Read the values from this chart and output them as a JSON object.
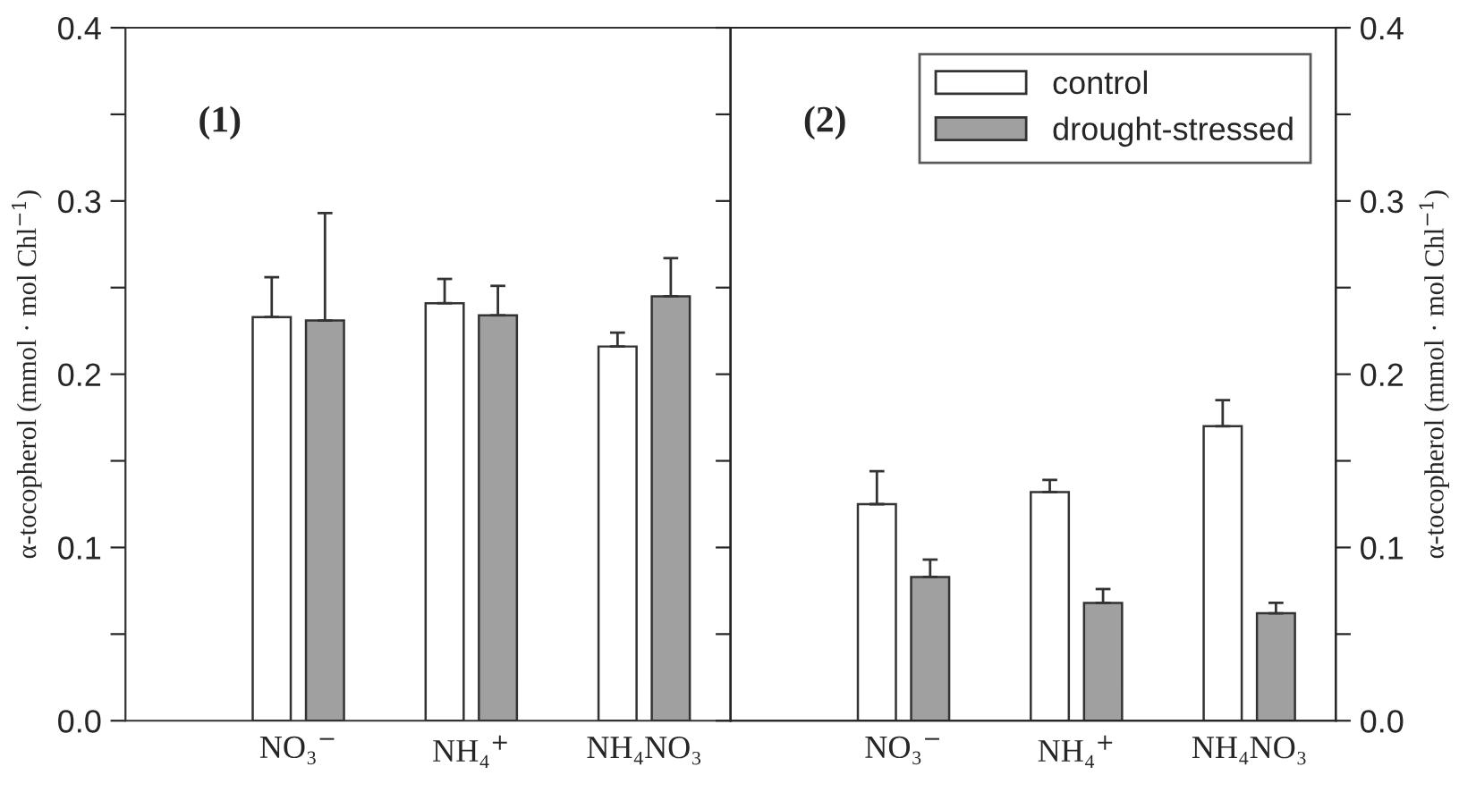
{
  "chart_data": [
    {
      "type": "bar",
      "annotations": [
        "(1)"
      ],
      "ylabel": "α-tocopherol (mmol · mol Chl$^{−1}$)",
      "categories": [
        "NO₃$^{−}$",
        "NH₄$^{+}$",
        "NH₄NO₃"
      ],
      "ylim": [
        0,
        0.4
      ],
      "yticks": [
        {
          "value": 0,
          "label": "0.0"
        },
        {
          "value": 0.05,
          "label": null
        },
        0.1,
        {
          "value": 0.15,
          "label": null
        },
        0.2,
        {
          "value": 0.25,
          "label": null
        },
        0.3,
        {
          "value": 0.35,
          "label": null
        },
        0.4
      ],
      "series": [
        {
          "color": "#ffffff",
          "values": [
            0.233,
            0.241,
            0.216
          ],
          "errors": [
            [
              0.233,
              0.256
            ],
            [
              0.241,
              0.255
            ],
            [
              0.216,
              0.224
            ]
          ]
        },
        {
          "color": "#a0a0a0",
          "values": [
            0.231,
            0.234,
            0.245
          ],
          "errors": [
            [
              0.231,
              0.293
            ],
            [
              0.234,
              0.251
            ],
            [
              0.245,
              0.267
            ]
          ]
        }
      ]
    },
    {
      "type": "bar",
      "annotations": [
        "(2)"
      ],
      "y2label": "α-tocopherol (mmol · mol Chl$^{−1}$)",
      "legend": "top right",
      "categories": [
        "NO₃$^{−}$",
        "NH₄$^{+}$",
        "NH₄NO₃"
      ],
      "y2lim": [
        0,
        0.4
      ],
      "y2ticks": [
        {
          "value": 0,
          "label": "0.0"
        },
        {
          "value": 0.05,
          "label": null
        },
        0.1,
        {
          "value": 0.15,
          "label": null
        },
        0.2,
        {
          "value": 0.25,
          "label": null
        },
        0.3,
        {
          "value": 0.35,
          "label": null
        },
        0.4
      ],
      "series": [
        {
          "name": "control",
          "color": "#ffffff",
          "axis": "y2",
          "values": [
            0.125,
            0.132,
            0.17
          ],
          "errors": [
            [
              0.125,
              0.144
            ],
            [
              0.132,
              0.139
            ],
            [
              0.17,
              0.185
            ]
          ]
        },
        {
          "name": "drought-stressed",
          "color": "#a0a0a0",
          "axis": "y2",
          "values": [
            0.083,
            0.068,
            0.062
          ],
          "errors": [
            [
              0.083,
              0.093
            ],
            [
              0.068,
              0.076
            ],
            [
              0.062,
              0.068
            ]
          ]
        }
      ]
    }
  ]
}
